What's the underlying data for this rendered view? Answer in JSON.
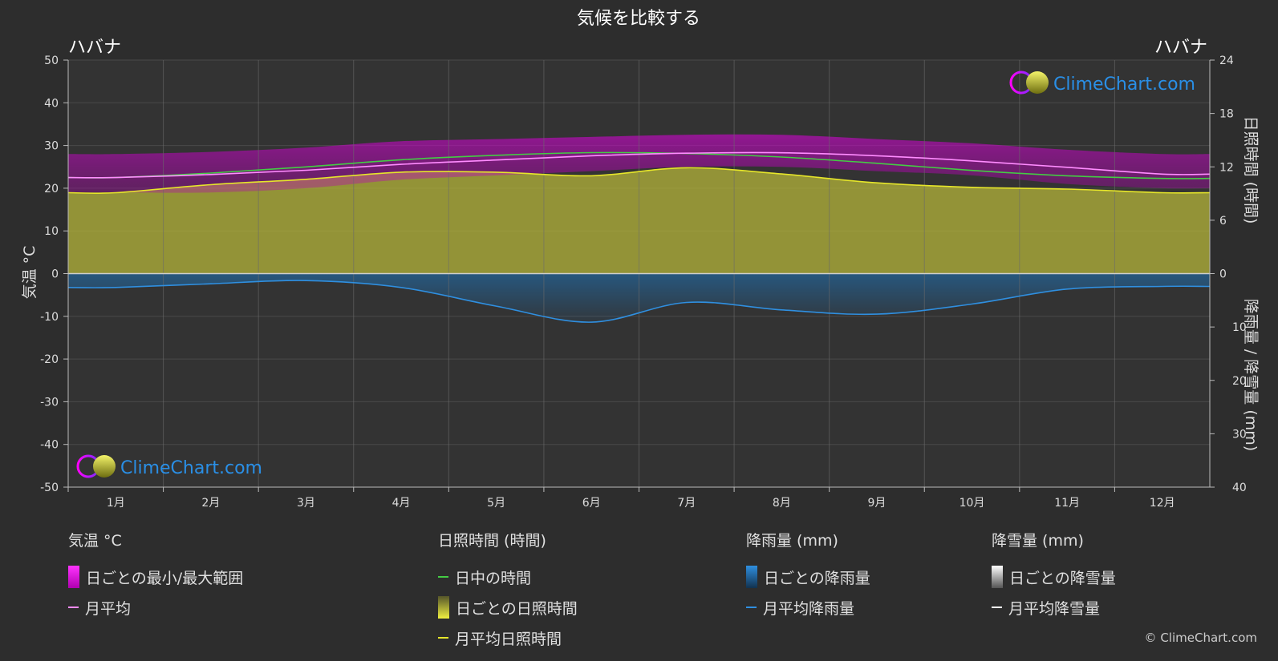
{
  "page": {
    "title": "気候を比較する",
    "location_left": "ハバナ",
    "location_right": "ハバナ",
    "copyright": "© ClimeChart.com",
    "watermark": "ClimeChart.com"
  },
  "colors": {
    "background": "#2d2d2d",
    "temp_range": "#e000e0",
    "temp_mean": "#ff8cff",
    "daylight": "#44cc44",
    "sunshine_fill": "#b4b43a",
    "sunshine_mean": "#e6e62a",
    "rain_fill": "#1f6fb0",
    "rain_mean": "#2f8fe0",
    "snow_mean": "#ffffff",
    "brand_blue": "#2a8fe6"
  },
  "chart_data": {
    "type": "line",
    "x_categories": [
      "1月",
      "2月",
      "3月",
      "4月",
      "5月",
      "6月",
      "7月",
      "8月",
      "9月",
      "10月",
      "11月",
      "12月"
    ],
    "axes": {
      "left": {
        "label": "気温 °C",
        "range": [
          -50,
          50
        ],
        "ticks": [
          50,
          40,
          30,
          20,
          10,
          0,
          -10,
          -20,
          -30,
          -40,
          -50
        ]
      },
      "right_top": {
        "label": "日照時間 (時間)",
        "range": [
          0,
          24
        ],
        "ticks": [
          24,
          18,
          12,
          6,
          0
        ]
      },
      "right_bottom": {
        "label": "降雨量 / 降雪量 (mm)",
        "range": [
          0,
          40
        ],
        "ticks": [
          10,
          20,
          30,
          40
        ]
      }
    },
    "series": [
      {
        "name": "月平均",
        "axis": "left",
        "values": [
          22.5,
          23.2,
          24.2,
          25.6,
          26.6,
          27.6,
          28.2,
          28.3,
          27.6,
          26.4,
          24.9,
          23.3
        ]
      },
      {
        "name": "日ごとの最小/最大範囲 (最小)",
        "axis": "left",
        "values": [
          19,
          19,
          20,
          22,
          23,
          24,
          25,
          25,
          24,
          23,
          21,
          20
        ]
      },
      {
        "name": "日ごとの最小/最大範囲 (最大)",
        "axis": "left",
        "values": [
          28,
          28.5,
          29.5,
          31,
          31.5,
          32,
          32.5,
          32.5,
          31.5,
          30.5,
          29,
          28
        ]
      },
      {
        "name": "日中の時間",
        "axis": "right_top",
        "values": [
          10.8,
          11.3,
          12,
          12.8,
          13.3,
          13.6,
          13.5,
          13.1,
          12.4,
          11.6,
          11,
          10.7
        ]
      },
      {
        "name": "月平均日照時間",
        "axis": "right_top",
        "values": [
          9.1,
          10,
          10.6,
          11.4,
          11.4,
          11.0,
          11.9,
          11.2,
          10.2,
          9.7,
          9.5,
          9.1
        ]
      },
      {
        "name": "月平均降雨量",
        "axis": "right_bottom",
        "values": [
          2.6,
          1.9,
          1.3,
          2.6,
          6.1,
          9.1,
          5.4,
          6.8,
          7.6,
          5.7,
          2.9,
          2.4
        ]
      },
      {
        "name": "月平均降雪量",
        "axis": "right_bottom",
        "values": [
          0,
          0,
          0,
          0,
          0,
          0,
          0,
          0,
          0,
          0,
          0,
          0
        ]
      }
    ],
    "grid": true
  },
  "legend": {
    "temp": {
      "title": "気温 °C",
      "items": [
        "日ごとの最小/最大範囲",
        "月平均"
      ]
    },
    "sun": {
      "title": "日照時間 (時間)",
      "items": [
        "日中の時間",
        "日ごとの日照時間",
        "月平均日照時間"
      ]
    },
    "rain": {
      "title": "降雨量 (mm)",
      "items": [
        "日ごとの降雨量",
        "月平均降雨量"
      ]
    },
    "snow": {
      "title": "降雪量 (mm)",
      "items": [
        "日ごとの降雪量",
        "月平均降雪量"
      ]
    }
  }
}
